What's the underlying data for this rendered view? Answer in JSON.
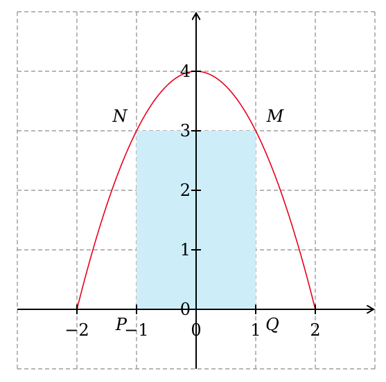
{
  "chart_data": {
    "type": "line",
    "title": "",
    "xlabel": "",
    "ylabel": "",
    "xlim": [
      -3,
      3
    ],
    "ylim": [
      -1,
      5
    ],
    "grid": true,
    "grid_style": "dashed",
    "x_ticks": [
      {
        "value": -2,
        "label": "−2"
      },
      {
        "value": -1,
        "label": "−1"
      },
      {
        "value": 0,
        "label": "0"
      },
      {
        "value": 1,
        "label": "1"
      },
      {
        "value": 2,
        "label": "2"
      }
    ],
    "y_ticks": [
      {
        "value": 0,
        "label": "0"
      },
      {
        "value": 1,
        "label": "1"
      },
      {
        "value": 2,
        "label": "2"
      },
      {
        "value": 3,
        "label": "3"
      },
      {
        "value": 4,
        "label": "4"
      }
    ],
    "curve": {
      "function": "y = 4 - x^2",
      "domain": [
        -2,
        2
      ],
      "color": "#e8001c"
    },
    "rectangle": {
      "x_range": [
        -1,
        1
      ],
      "y_range": [
        0,
        3
      ],
      "color": "#cdeef9"
    },
    "points": [
      {
        "label": "N",
        "x": -1,
        "y": 3
      },
      {
        "label": "M",
        "x": 1,
        "y": 3
      },
      {
        "label": "P",
        "x": -1,
        "y": 0
      },
      {
        "label": "Q",
        "x": 1,
        "y": 0
      }
    ]
  }
}
